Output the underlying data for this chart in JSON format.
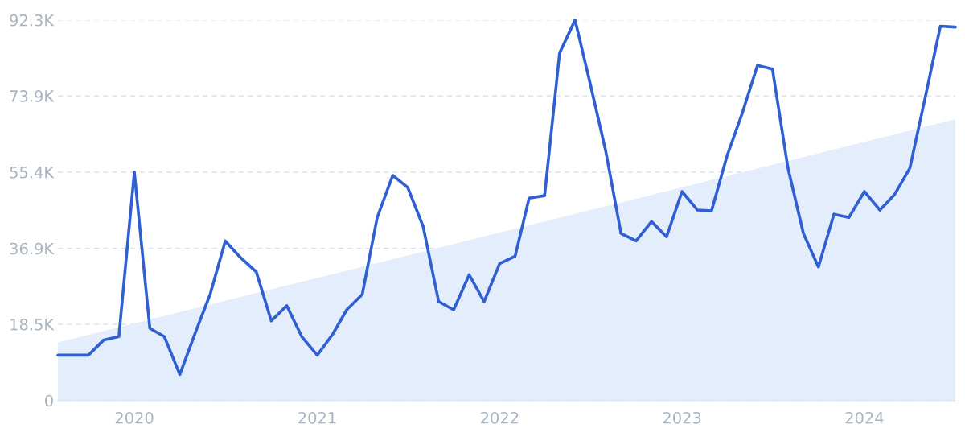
{
  "chart_data": {
    "type": "line",
    "x": [
      "2019-08",
      "2019-09",
      "2019-10",
      "2019-11",
      "2019-12",
      "2020-01",
      "2020-02",
      "2020-03",
      "2020-04",
      "2020-05",
      "2020-06",
      "2020-07",
      "2020-08",
      "2020-09",
      "2020-10",
      "2020-11",
      "2020-12",
      "2021-01",
      "2021-02",
      "2021-03",
      "2021-04",
      "2021-05",
      "2021-06",
      "2021-07",
      "2021-08",
      "2021-09",
      "2021-10",
      "2021-11",
      "2021-12",
      "2022-01",
      "2022-02",
      "2022-03",
      "2022-04",
      "2022-05",
      "2022-06",
      "2022-07",
      "2022-08",
      "2022-09",
      "2022-10",
      "2022-11",
      "2022-12",
      "2023-01",
      "2023-02",
      "2023-03",
      "2023-04",
      "2023-05",
      "2023-06",
      "2023-07",
      "2023-08",
      "2023-09",
      "2023-10",
      "2023-11",
      "2023-12",
      "2024-01",
      "2024-02",
      "2024-03",
      "2024-04",
      "2024-05",
      "2024-06",
      "2024-07"
    ],
    "series": [
      {
        "type": "area",
        "color": "#e4edfb",
        "x": [
          "2019-08",
          "2024-07"
        ],
        "values": [
          14.1,
          68.2
        ]
      },
      {
        "type": "line",
        "color": "#2f5fd0",
        "values": [
          11.0,
          11.0,
          11.0,
          14.7,
          15.5,
          55.4,
          17.5,
          15.5,
          6.3,
          16.1,
          25.9,
          38.7,
          34.6,
          31.2,
          19.3,
          23.0,
          15.5,
          11.0,
          16.1,
          22.0,
          25.7,
          44.4,
          54.6,
          51.7,
          42.2,
          24.0,
          22.0,
          30.5,
          24.0,
          33.2,
          35.0,
          49.1,
          49.7,
          84.3,
          92.3,
          77.0,
          60.7,
          40.5,
          38.7,
          43.4,
          39.7,
          50.7,
          46.2,
          46.0,
          59.3,
          69.5,
          81.3,
          80.4,
          56.4,
          40.5,
          32.4,
          45.2,
          44.4,
          50.7,
          46.2,
          49.9,
          56.4,
          73.1,
          90.8,
          90.6
        ]
      }
    ],
    "xlim": [
      "2019-08",
      "2024-07"
    ],
    "xticks": [
      {
        "value": "2020-01",
        "label": "2020"
      },
      {
        "value": "2021-01",
        "label": "2021"
      },
      {
        "value": "2022-01",
        "label": "2022"
      },
      {
        "value": "2023-01",
        "label": "2023"
      },
      {
        "value": "2024-01",
        "label": "2024"
      }
    ],
    "ylim": [
      0,
      92.3
    ],
    "yticks": [
      0,
      {
        "value": 18.5,
        "label": "18.5K"
      },
      {
        "value": 36.9,
        "label": "36.9K"
      },
      {
        "value": 55.4,
        "label": "55.4K"
      },
      {
        "value": 73.9,
        "label": "73.9K"
      },
      {
        "value": 92.3,
        "label": "92.3K"
      }
    ],
    "grid": "y"
  }
}
